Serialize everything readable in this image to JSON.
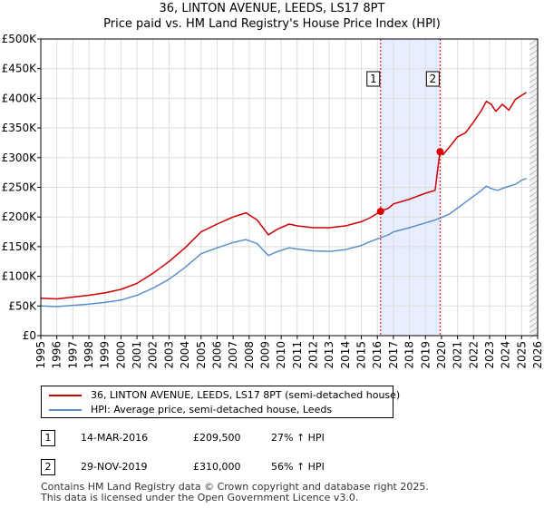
{
  "chart_data": {
    "type": "line",
    "title": "36, LINTON AVENUE, LEEDS, LS17 8PT",
    "subtitle": "Price paid vs. HM Land Registry's House Price Index (HPI)",
    "xlim": [
      1995,
      2026
    ],
    "ylim": [
      0,
      500000
    ],
    "x_ticks": [
      "1995",
      "1996",
      "1997",
      "1998",
      "1999",
      "2000",
      "2001",
      "2002",
      "2003",
      "2004",
      "2005",
      "2006",
      "2007",
      "2008",
      "2009",
      "2010",
      "2011",
      "2012",
      "2013",
      "2014",
      "2015",
      "2016",
      "2017",
      "2018",
      "2019",
      "2020",
      "2021",
      "2022",
      "2023",
      "2024",
      "2025",
      "2026"
    ],
    "y_ticks": [
      {
        "value": 0,
        "label": "£0"
      },
      {
        "value": 50000,
        "label": "£50K"
      },
      {
        "value": 100000,
        "label": "£100K"
      },
      {
        "value": 150000,
        "label": "£150K"
      },
      {
        "value": 200000,
        "label": "£200K"
      },
      {
        "value": 250000,
        "label": "£250K"
      },
      {
        "value": 300000,
        "label": "£300K"
      },
      {
        "value": 350000,
        "label": "£350K"
      },
      {
        "value": 400000,
        "label": "£400K"
      },
      {
        "value": 450000,
        "label": "£450K"
      },
      {
        "value": 500000,
        "label": "£500K"
      }
    ],
    "series": [
      {
        "name": "36, LINTON AVENUE, LEEDS, LS17 8PT (semi-detached house)",
        "color": "#cc0000",
        "points": [
          [
            1995,
            63000
          ],
          [
            1996,
            62000
          ],
          [
            1997,
            65000
          ],
          [
            1998,
            68000
          ],
          [
            1999,
            72000
          ],
          [
            2000,
            78000
          ],
          [
            2001,
            88000
          ],
          [
            2002,
            105000
          ],
          [
            2003,
            125000
          ],
          [
            2004,
            148000
          ],
          [
            2005,
            175000
          ],
          [
            2006,
            188000
          ],
          [
            2007,
            200000
          ],
          [
            2007.8,
            207000
          ],
          [
            2008.5,
            195000
          ],
          [
            2009.2,
            170000
          ],
          [
            2009.8,
            180000
          ],
          [
            2010.5,
            188000
          ],
          [
            2011,
            185000
          ],
          [
            2012,
            182000
          ],
          [
            2013,
            182000
          ],
          [
            2014,
            185000
          ],
          [
            2015,
            192000
          ],
          [
            2015.5,
            198000
          ],
          [
            2016.2,
            209500
          ],
          [
            2016.7,
            215000
          ],
          [
            2017,
            222000
          ],
          [
            2018,
            230000
          ],
          [
            2019,
            240000
          ],
          [
            2019.6,
            245000
          ],
          [
            2019.9,
            310000
          ],
          [
            2020.1,
            305000
          ],
          [
            2020.5,
            318000
          ],
          [
            2021,
            335000
          ],
          [
            2021.5,
            342000
          ],
          [
            2022,
            360000
          ],
          [
            2022.5,
            380000
          ],
          [
            2022.8,
            395000
          ],
          [
            2023.1,
            390000
          ],
          [
            2023.4,
            378000
          ],
          [
            2023.8,
            390000
          ],
          [
            2024.2,
            380000
          ],
          [
            2024.6,
            398000
          ],
          [
            2025,
            405000
          ],
          [
            2025.3,
            410000
          ]
        ]
      },
      {
        "name": "HPI: Average price, semi-detached house, Leeds",
        "color": "#5b8fc9",
        "points": [
          [
            1995,
            50000
          ],
          [
            1996,
            49000
          ],
          [
            1997,
            51000
          ],
          [
            1998,
            53000
          ],
          [
            1999,
            56000
          ],
          [
            2000,
            60000
          ],
          [
            2001,
            68000
          ],
          [
            2002,
            80000
          ],
          [
            2003,
            95000
          ],
          [
            2004,
            115000
          ],
          [
            2005,
            138000
          ],
          [
            2006,
            148000
          ],
          [
            2007,
            157000
          ],
          [
            2007.8,
            162000
          ],
          [
            2008.5,
            155000
          ],
          [
            2009.2,
            135000
          ],
          [
            2009.8,
            142000
          ],
          [
            2010.5,
            148000
          ],
          [
            2011,
            146000
          ],
          [
            2012,
            143000
          ],
          [
            2013,
            142000
          ],
          [
            2014,
            145000
          ],
          [
            2015,
            152000
          ],
          [
            2015.5,
            158000
          ],
          [
            2016.2,
            165000
          ],
          [
            2016.7,
            170000
          ],
          [
            2017,
            175000
          ],
          [
            2018,
            182000
          ],
          [
            2019,
            190000
          ],
          [
            2019.6,
            195000
          ],
          [
            2019.9,
            198000
          ],
          [
            2020.5,
            205000
          ],
          [
            2021,
            215000
          ],
          [
            2021.5,
            225000
          ],
          [
            2022,
            235000
          ],
          [
            2022.5,
            245000
          ],
          [
            2022.8,
            252000
          ],
          [
            2023.1,
            248000
          ],
          [
            2023.5,
            245000
          ],
          [
            2024,
            250000
          ],
          [
            2024.6,
            255000
          ],
          [
            2025,
            262000
          ],
          [
            2025.3,
            265000
          ]
        ]
      }
    ],
    "sales": [
      {
        "label": "1",
        "x": 2016.2,
        "value": 209500
      },
      {
        "label": "2",
        "x": 2019.91,
        "value": 310000
      }
    ],
    "shaded_region": [
      2016.2,
      2019.91
    ],
    "future_from": 2025.5
  },
  "legend": {
    "property_label": "36, LINTON AVENUE, LEEDS, LS17 8PT (semi-detached house)",
    "hpi_label": "HPI: Average price, semi-detached house, Leeds"
  },
  "transactions": [
    {
      "num": "1",
      "date": "14-MAR-2016",
      "price": "£209,500",
      "hpi": "27% ↑ HPI"
    },
    {
      "num": "2",
      "date": "29-NOV-2019",
      "price": "£310,000",
      "hpi": "56% ↑ HPI"
    }
  ],
  "footer": {
    "line1": "Contains HM Land Registry data © Crown copyright and database right 2025.",
    "line2": "This data is licensed under the Open Government Licence v3.0."
  },
  "colors": {
    "property_line": "#cc0000",
    "hpi_line": "#5b8fc9",
    "shade": "#e8eeff",
    "marker_line": "#dd0000"
  }
}
